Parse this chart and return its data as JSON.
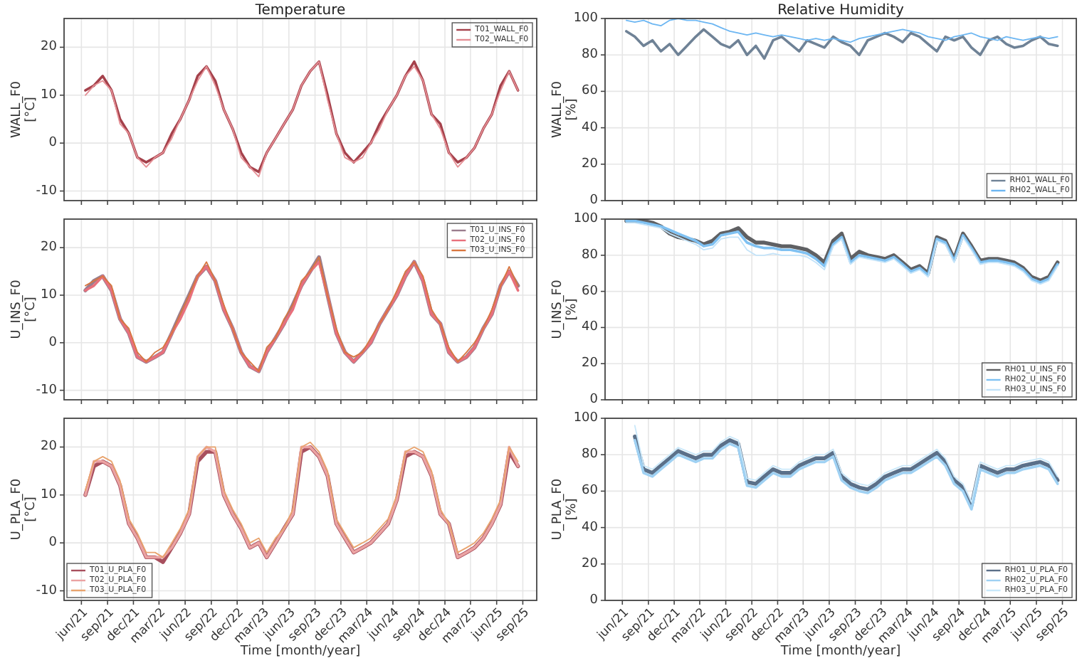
{
  "chart_data": [
    {
      "type": "line",
      "title": "Temperature",
      "ylabel": "WALL_F0\n[°C]",
      "xlim": [
        "2021-04-01",
        "2025-10-20"
      ],
      "ylim": [
        -12,
        26
      ],
      "yticks": [
        -10,
        0,
        10,
        20
      ],
      "xticks": [
        {
          "value": "2021-06-01",
          "label": null
        },
        {
          "value": "2021-09-01",
          "label": null
        },
        {
          "value": "2021-12-01",
          "label": null
        },
        {
          "value": "2022-03-01",
          "label": null
        },
        {
          "value": "2022-06-01",
          "label": null
        },
        {
          "value": "2022-09-01",
          "label": null
        },
        {
          "value": "2022-12-01",
          "label": null
        },
        {
          "value": "2023-03-01",
          "label": null
        },
        {
          "value": "2023-06-01",
          "label": null
        },
        {
          "value": "2023-09-01",
          "label": null
        },
        {
          "value": "2023-12-01",
          "label": null
        },
        {
          "value": "2024-03-01",
          "label": null
        },
        {
          "value": "2024-06-01",
          "label": null
        },
        {
          "value": "2024-09-01",
          "label": null
        },
        {
          "value": "2024-12-01",
          "label": null
        },
        {
          "value": "2025-03-01",
          "label": null
        },
        {
          "value": "2025-06-01",
          "label": null
        },
        {
          "value": "2025-09-01",
          "label": null
        }
      ],
      "tick_labels": "y",
      "grid": true,
      "legend": "top right",
      "x": [
        "2021-06-15",
        "2021-07-15",
        "2021-08-15",
        "2021-09-15",
        "2021-10-15",
        "2021-11-15",
        "2021-12-15",
        "2022-01-15",
        "2022-02-15",
        "2022-03-15",
        "2022-04-15",
        "2022-05-15",
        "2022-06-15",
        "2022-07-15",
        "2022-08-15",
        "2022-09-15",
        "2022-10-15",
        "2022-11-15",
        "2022-12-15",
        "2023-01-15",
        "2023-02-15",
        "2023-03-15",
        "2023-04-15",
        "2023-05-15",
        "2023-06-15",
        "2023-07-15",
        "2023-08-15",
        "2023-09-15",
        "2023-10-15",
        "2023-11-15",
        "2023-12-15",
        "2024-01-15",
        "2024-02-15",
        "2024-03-15",
        "2024-04-15",
        "2024-05-15",
        "2024-06-15",
        "2024-07-15",
        "2024-08-15",
        "2024-09-15",
        "2024-10-15",
        "2024-11-15",
        "2024-12-15",
        "2025-01-15",
        "2025-02-15",
        "2025-03-15",
        "2025-04-15",
        "2025-05-15",
        "2025-06-15",
        "2025-07-15",
        "2025-08-15"
      ],
      "series": [
        {
          "name": "T01_WALL_F0",
          "color": "#a5414b",
          "values": [
            11,
            12,
            14,
            11,
            5,
            2,
            -3,
            -4,
            -3,
            -2,
            2,
            5,
            9,
            14,
            16,
            13,
            7,
            3,
            -2,
            -5,
            -6,
            -2,
            1,
            4,
            7,
            12,
            15,
            17,
            10,
            2,
            -2,
            -4,
            -2,
            0,
            4,
            7,
            10,
            14,
            17,
            13,
            6,
            4,
            -2,
            -4,
            -3,
            -1,
            3,
            6,
            12,
            15,
            11
          ]
        },
        {
          "name": "T02_WALL_F0",
          "color": "#e58f95",
          "values": [
            10,
            12,
            13,
            11,
            4,
            2,
            -3,
            -5,
            -3,
            -2,
            1,
            5,
            9,
            13,
            16,
            12,
            7,
            3,
            -3,
            -5,
            -7,
            -2,
            1,
            4,
            7,
            12,
            15,
            17,
            9,
            2,
            -3,
            -4,
            -3,
            0,
            3,
            7,
            10,
            14,
            16,
            13,
            6,
            3,
            -2,
            -5,
            -3,
            -1,
            3,
            6,
            11,
            15,
            11
          ]
        }
      ]
    },
    {
      "type": "line",
      "title": "Relative Humidity",
      "ylabel": "WALL_F0\n[%]",
      "xlim": [
        "2021-04-01",
        "2025-10-20"
      ],
      "ylim": [
        0,
        100
      ],
      "yticks": [
        0,
        20,
        40,
        60,
        80,
        100
      ],
      "xticks": [
        {
          "value": "2021-06-01",
          "label": null
        },
        {
          "value": "2021-09-01",
          "label": null
        },
        {
          "value": "2021-12-01",
          "label": null
        },
        {
          "value": "2022-03-01",
          "label": null
        },
        {
          "value": "2022-06-01",
          "label": null
        },
        {
          "value": "2022-09-01",
          "label": null
        },
        {
          "value": "2022-12-01",
          "label": null
        },
        {
          "value": "2023-03-01",
          "label": null
        },
        {
          "value": "2023-06-01",
          "label": null
        },
        {
          "value": "2023-09-01",
          "label": null
        },
        {
          "value": "2023-12-01",
          "label": null
        },
        {
          "value": "2024-03-01",
          "label": null
        },
        {
          "value": "2024-06-01",
          "label": null
        },
        {
          "value": "2024-09-01",
          "label": null
        },
        {
          "value": "2024-12-01",
          "label": null
        },
        {
          "value": "2025-03-01",
          "label": null
        },
        {
          "value": "2025-06-01",
          "label": null
        },
        {
          "value": "2025-09-01",
          "label": null
        }
      ],
      "tick_labels": "y",
      "grid": true,
      "legend": "bottom right",
      "x": [
        "2021-06-15",
        "2021-07-15",
        "2021-08-15",
        "2021-09-15",
        "2021-10-15",
        "2021-11-15",
        "2021-12-15",
        "2022-01-15",
        "2022-02-15",
        "2022-03-15",
        "2022-04-15",
        "2022-05-15",
        "2022-06-15",
        "2022-07-15",
        "2022-08-15",
        "2022-09-15",
        "2022-10-15",
        "2022-11-15",
        "2022-12-15",
        "2023-01-15",
        "2023-02-15",
        "2023-03-15",
        "2023-04-15",
        "2023-05-15",
        "2023-06-15",
        "2023-07-15",
        "2023-08-15",
        "2023-09-15",
        "2023-10-15",
        "2023-11-15",
        "2023-12-15",
        "2024-01-15",
        "2024-02-15",
        "2024-03-15",
        "2024-04-15",
        "2024-05-15",
        "2024-06-15",
        "2024-07-15",
        "2024-08-15",
        "2024-09-15",
        "2024-10-15",
        "2024-11-15",
        "2024-12-15",
        "2025-01-15",
        "2025-02-15",
        "2025-03-15",
        "2025-04-15",
        "2025-05-15",
        "2025-06-15",
        "2025-07-15",
        "2025-08-15"
      ],
      "series": [
        {
          "name": "RH01_WALL_F0",
          "color": "#6f8296",
          "values": [
            93,
            90,
            85,
            88,
            82,
            86,
            80,
            85,
            90,
            94,
            90,
            86,
            84,
            88,
            80,
            85,
            78,
            88,
            90,
            86,
            82,
            88,
            86,
            84,
            90,
            87,
            85,
            80,
            88,
            90,
            92,
            90,
            87,
            92,
            90,
            86,
            82,
            90,
            88,
            90,
            84,
            80,
            88,
            90,
            86,
            84,
            85,
            88,
            90,
            86,
            85
          ]
        },
        {
          "name": "RH02_WALL_F0",
          "color": "#6cb6f2",
          "values": [
            99,
            98,
            99,
            97,
            96,
            99,
            100,
            99,
            99,
            98,
            97,
            95,
            93,
            92,
            91,
            92,
            91,
            90,
            91,
            90,
            89,
            88,
            89,
            88,
            89,
            88,
            87,
            89,
            90,
            91,
            92,
            93,
            94,
            93,
            92,
            90,
            89,
            88,
            90,
            91,
            92,
            90,
            89,
            88,
            90,
            89,
            88,
            89,
            90,
            89,
            90
          ]
        }
      ]
    },
    {
      "type": "line",
      "ylabel": "U_INS_F0\n[°C]",
      "xlim": [
        "2021-04-01",
        "2025-10-20"
      ],
      "ylim": [
        -12,
        26
      ],
      "yticks": [
        -10,
        0,
        10,
        20
      ],
      "xticks": [
        {
          "value": "2021-06-01",
          "label": null
        },
        {
          "value": "2021-09-01",
          "label": null
        },
        {
          "value": "2021-12-01",
          "label": null
        },
        {
          "value": "2022-03-01",
          "label": null
        },
        {
          "value": "2022-06-01",
          "label": null
        },
        {
          "value": "2022-09-01",
          "label": null
        },
        {
          "value": "2022-12-01",
          "label": null
        },
        {
          "value": "2023-03-01",
          "label": null
        },
        {
          "value": "2023-06-01",
          "label": null
        },
        {
          "value": "2023-09-01",
          "label": null
        },
        {
          "value": "2023-12-01",
          "label": null
        },
        {
          "value": "2024-03-01",
          "label": null
        },
        {
          "value": "2024-06-01",
          "label": null
        },
        {
          "value": "2024-09-01",
          "label": null
        },
        {
          "value": "2024-12-01",
          "label": null
        },
        {
          "value": "2025-03-01",
          "label": null
        },
        {
          "value": "2025-06-01",
          "label": null
        },
        {
          "value": "2025-09-01",
          "label": null
        }
      ],
      "tick_labels": "y",
      "grid": true,
      "legend": "top right",
      "x": [
        "2021-06-15",
        "2021-07-15",
        "2021-08-15",
        "2021-09-15",
        "2021-10-15",
        "2021-11-15",
        "2021-12-15",
        "2022-01-15",
        "2022-02-15",
        "2022-03-15",
        "2022-04-15",
        "2022-05-15",
        "2022-06-15",
        "2022-07-15",
        "2022-08-15",
        "2022-09-15",
        "2022-10-15",
        "2022-11-15",
        "2022-12-15",
        "2023-01-15",
        "2023-02-15",
        "2023-03-15",
        "2023-04-15",
        "2023-05-15",
        "2023-06-15",
        "2023-07-15",
        "2023-08-15",
        "2023-09-15",
        "2023-10-15",
        "2023-11-15",
        "2023-12-15",
        "2024-01-15",
        "2024-02-15",
        "2024-03-15",
        "2024-04-15",
        "2024-05-15",
        "2024-06-15",
        "2024-07-15",
        "2024-08-15",
        "2024-09-15",
        "2024-10-15",
        "2024-11-15",
        "2024-12-15",
        "2025-01-15",
        "2025-02-15",
        "2025-03-15",
        "2025-04-15",
        "2025-05-15",
        "2025-06-15",
        "2025-07-15",
        "2025-08-15"
      ],
      "series": [
        {
          "name": "T01_U_INS_F0",
          "color": "#9a7d8e",
          "values": [
            11,
            13,
            14,
            11,
            5,
            2,
            -3,
            -4,
            -3,
            -2,
            2,
            6,
            10,
            14,
            16,
            13,
            7,
            3,
            -2,
            -5,
            -6,
            -2,
            1,
            4,
            8,
            12,
            15,
            18,
            10,
            2,
            -2,
            -4,
            -2,
            0,
            4,
            7,
            10,
            14,
            17,
            13,
            6,
            4,
            -2,
            -4,
            -3,
            -1,
            3,
            6,
            12,
            15,
            12
          ]
        },
        {
          "name": "T02_U_INS_F0",
          "color": "#e8707c",
          "values": [
            11,
            12,
            14,
            11,
            5,
            2,
            -3,
            -4,
            -3,
            -2,
            2,
            5,
            9,
            14,
            16,
            13,
            7,
            3,
            -2,
            -5,
            -6,
            -2,
            1,
            4,
            7,
            12,
            15,
            17,
            10,
            2,
            -2,
            -4,
            -2,
            0,
            4,
            7,
            10,
            14,
            17,
            13,
            6,
            4,
            -2,
            -4,
            -3,
            -1,
            3,
            6,
            12,
            15,
            11
          ]
        },
        {
          "name": "T03_U_INS_F0",
          "color": "#d9763f",
          "values": [
            12,
            13,
            14,
            12,
            5,
            3,
            -2,
            -4,
            -2,
            -1,
            2,
            6,
            10,
            14,
            17,
            13,
            8,
            3,
            -2,
            -4,
            -6,
            -1,
            1,
            5,
            8,
            13,
            15,
            18,
            10,
            3,
            -2,
            -3,
            -2,
            1,
            4,
            7,
            11,
            15,
            17,
            14,
            7,
            4,
            -1,
            -4,
            -2,
            0,
            3,
            7,
            12,
            16,
            12
          ]
        }
      ]
    },
    {
      "type": "line",
      "ylabel": "U_INS_F0\n[%]",
      "xlim": [
        "2021-04-01",
        "2025-10-20"
      ],
      "ylim": [
        0,
        100
      ],
      "yticks": [
        0,
        20,
        40,
        60,
        80,
        100
      ],
      "xticks": [
        {
          "value": "2021-06-01",
          "label": null
        },
        {
          "value": "2021-09-01",
          "label": null
        },
        {
          "value": "2021-12-01",
          "label": null
        },
        {
          "value": "2022-03-01",
          "label": null
        },
        {
          "value": "2022-06-01",
          "label": null
        },
        {
          "value": "2022-09-01",
          "label": null
        },
        {
          "value": "2022-12-01",
          "label": null
        },
        {
          "value": "2023-03-01",
          "label": null
        },
        {
          "value": "2023-06-01",
          "label": null
        },
        {
          "value": "2023-09-01",
          "label": null
        },
        {
          "value": "2023-12-01",
          "label": null
        },
        {
          "value": "2024-03-01",
          "label": null
        },
        {
          "value": "2024-06-01",
          "label": null
        },
        {
          "value": "2024-09-01",
          "label": null
        },
        {
          "value": "2024-12-01",
          "label": null
        },
        {
          "value": "2025-03-01",
          "label": null
        },
        {
          "value": "2025-06-01",
          "label": null
        },
        {
          "value": "2025-09-01",
          "label": null
        }
      ],
      "tick_labels": "y",
      "grid": true,
      "legend": "bottom right",
      "x": [
        "2021-06-15",
        "2021-07-15",
        "2021-08-15",
        "2021-09-15",
        "2021-10-15",
        "2021-11-15",
        "2021-12-15",
        "2022-01-15",
        "2022-02-15",
        "2022-03-15",
        "2022-04-15",
        "2022-05-15",
        "2022-06-15",
        "2022-07-15",
        "2022-08-15",
        "2022-09-15",
        "2022-10-15",
        "2022-11-15",
        "2022-12-15",
        "2023-01-15",
        "2023-02-15",
        "2023-03-15",
        "2023-04-15",
        "2023-05-15",
        "2023-06-15",
        "2023-07-15",
        "2023-08-15",
        "2023-09-15",
        "2023-10-15",
        "2023-11-15",
        "2023-12-15",
        "2024-01-15",
        "2024-02-15",
        "2024-03-15",
        "2024-04-15",
        "2024-05-15",
        "2024-06-15",
        "2024-07-15",
        "2024-08-15",
        "2024-09-15",
        "2024-10-15",
        "2024-11-15",
        "2024-12-15",
        "2025-01-15",
        "2025-02-15",
        "2025-03-15",
        "2025-04-15",
        "2025-05-15",
        "2025-06-15",
        "2025-07-15",
        "2025-08-15"
      ],
      "series": [
        {
          "name": "RH01_U_INS_F0",
          "color": "#5f6063",
          "values": [
            99,
            99,
            99,
            98,
            96,
            92,
            90,
            89,
            88,
            86,
            88,
            92,
            93,
            95,
            90,
            87,
            87,
            86,
            85,
            85,
            84,
            83,
            80,
            76,
            88,
            92,
            78,
            82,
            80,
            79,
            78,
            80,
            76,
            72,
            74,
            70,
            90,
            88,
            78,
            92,
            85,
            77,
            78,
            78,
            77,
            76,
            73,
            68,
            66,
            68,
            76
          ]
        },
        {
          "name": "RH02_U_INS_F0",
          "color": "#7fc1f2",
          "values": [
            99,
            99,
            98,
            97,
            96,
            94,
            92,
            90,
            88,
            85,
            86,
            91,
            92,
            93,
            87,
            85,
            84,
            84,
            83,
            83,
            82,
            81,
            78,
            74,
            86,
            90,
            76,
            80,
            79,
            78,
            77,
            79,
            75,
            71,
            73,
            69,
            89,
            87,
            77,
            91,
            84,
            76,
            77,
            77,
            76,
            75,
            72,
            67,
            65,
            67,
            75
          ]
        },
        {
          "name": "RH03_U_INS_F0",
          "color": "#c3e3f9",
          "values": [
            98,
            98,
            97,
            96,
            95,
            92,
            90,
            88,
            86,
            83,
            84,
            89,
            90,
            90,
            83,
            80,
            80,
            81,
            80,
            80,
            80,
            79,
            76,
            72,
            85,
            89,
            75,
            79,
            78,
            77,
            76,
            78,
            74,
            70,
            72,
            68,
            88,
            86,
            76,
            90,
            83,
            75,
            76,
            76,
            75,
            74,
            71,
            66,
            64,
            66,
            74
          ]
        }
      ]
    },
    {
      "type": "line",
      "ylabel": "U_PLA_F0\n[°C]",
      "xlabel": "Time [month/year]",
      "xlim": [
        "2021-04-01",
        "2025-10-20"
      ],
      "ylim": [
        -12,
        26
      ],
      "yticks": [
        -10,
        0,
        10,
        20
      ],
      "xticks": [
        {
          "value": "2021-06-01",
          "label": "jun/21"
        },
        {
          "value": "2021-09-01",
          "label": "sep/21"
        },
        {
          "value": "2021-12-01",
          "label": "dec/21"
        },
        {
          "value": "2022-03-01",
          "label": "mar/22"
        },
        {
          "value": "2022-06-01",
          "label": "jun/22"
        },
        {
          "value": "2022-09-01",
          "label": "sep/22"
        },
        {
          "value": "2022-12-01",
          "label": "dec/22"
        },
        {
          "value": "2023-03-01",
          "label": "mar/23"
        },
        {
          "value": "2023-06-01",
          "label": "jun/23"
        },
        {
          "value": "2023-09-01",
          "label": "sep/23"
        },
        {
          "value": "2023-12-01",
          "label": "dec/23"
        },
        {
          "value": "2024-03-01",
          "label": "mar/24"
        },
        {
          "value": "2024-06-01",
          "label": "jun/24"
        },
        {
          "value": "2024-09-01",
          "label": "sep/24"
        },
        {
          "value": "2024-12-01",
          "label": "dec/24"
        },
        {
          "value": "2025-03-01",
          "label": "mar/25"
        },
        {
          "value": "2025-06-01",
          "label": "jun/25"
        },
        {
          "value": "2025-09-01",
          "label": "sep/25"
        }
      ],
      "grid": true,
      "legend": "bottom left",
      "x": [
        "2021-06-15",
        "2021-07-15",
        "2021-08-15",
        "2021-09-15",
        "2021-10-15",
        "2021-11-15",
        "2021-12-15",
        "2022-01-15",
        "2022-02-15",
        "2022-03-15",
        "2022-04-15",
        "2022-05-15",
        "2022-06-15",
        "2022-07-15",
        "2022-08-15",
        "2022-09-15",
        "2022-10-15",
        "2022-11-15",
        "2022-12-15",
        "2023-01-15",
        "2023-02-15",
        "2023-03-15",
        "2023-04-15",
        "2023-05-15",
        "2023-06-15",
        "2023-07-15",
        "2023-08-15",
        "2023-09-15",
        "2023-10-15",
        "2023-11-15",
        "2023-12-15",
        "2024-01-15",
        "2024-02-15",
        "2024-03-15",
        "2024-04-15",
        "2024-05-15",
        "2024-06-15",
        "2024-07-15",
        "2024-08-15",
        "2024-09-15",
        "2024-10-15",
        "2024-11-15",
        "2024-12-15",
        "2025-01-15",
        "2025-02-15",
        "2025-03-15",
        "2025-04-15",
        "2025-05-15",
        "2025-06-15",
        "2025-07-15",
        "2025-08-15"
      ],
      "series": [
        {
          "name": "T01_U_PLA_F0",
          "color": "#a8505e",
          "values": [
            10,
            16,
            17,
            16,
            12,
            4,
            1,
            -3,
            -3,
            -4,
            -1,
            2,
            6,
            17,
            19,
            19,
            10,
            6,
            3,
            -1,
            0,
            -3,
            0,
            3,
            6,
            19,
            20,
            18,
            14,
            4,
            1,
            -2,
            -1,
            0,
            2,
            4,
            9,
            18,
            19,
            18,
            14,
            6,
            4,
            -3,
            -2,
            -1,
            1,
            4,
            8,
            19,
            16
          ]
        },
        {
          "name": "T02_U_PLA_F0",
          "color": "#eba3a3",
          "values": [
            10,
            17,
            17,
            16,
            12,
            4,
            1,
            -3,
            -3,
            -3,
            -1,
            2,
            6,
            18,
            20,
            19,
            10,
            6,
            3,
            -1,
            0,
            -3,
            0,
            3,
            6,
            20,
            20,
            18,
            14,
            4,
            1,
            -2,
            -1,
            0,
            2,
            4,
            9,
            19,
            19,
            18,
            14,
            6,
            4,
            -3,
            -2,
            -1,
            1,
            4,
            8,
            20,
            16
          ]
        },
        {
          "name": "T03_U_PLA_F0",
          "color": "#e9a46e",
          "values": [
            11,
            17,
            18,
            17,
            13,
            5,
            2,
            -2,
            -2,
            -3,
            0,
            3,
            7,
            18,
            20,
            20,
            11,
            7,
            4,
            0,
            1,
            -2,
            1,
            3,
            7,
            20,
            21,
            19,
            15,
            5,
            2,
            -1,
            0,
            1,
            3,
            5,
            10,
            19,
            20,
            19,
            15,
            7,
            4,
            -2,
            -1,
            0,
            2,
            5,
            9,
            20,
            17
          ]
        }
      ]
    },
    {
      "type": "line",
      "ylabel": "U_PLA_F0\n[%]",
      "xlabel": "Time [month/year]",
      "xlim": [
        "2021-04-01",
        "2025-10-20"
      ],
      "ylim": [
        0,
        100
      ],
      "yticks": [
        0,
        20,
        40,
        60,
        80,
        100
      ],
      "xticks": [
        {
          "value": "2021-06-01",
          "label": "jun/21"
        },
        {
          "value": "2021-09-01",
          "label": "sep/21"
        },
        {
          "value": "2021-12-01",
          "label": "dec/21"
        },
        {
          "value": "2022-03-01",
          "label": "mar/22"
        },
        {
          "value": "2022-06-01",
          "label": "jun/22"
        },
        {
          "value": "2022-09-01",
          "label": "sep/22"
        },
        {
          "value": "2022-12-01",
          "label": "dec/22"
        },
        {
          "value": "2023-03-01",
          "label": "mar/23"
        },
        {
          "value": "2023-06-01",
          "label": "jun/23"
        },
        {
          "value": "2023-09-01",
          "label": "sep/23"
        },
        {
          "value": "2023-12-01",
          "label": "dec/23"
        },
        {
          "value": "2024-03-01",
          "label": "mar/24"
        },
        {
          "value": "2024-06-01",
          "label": "jun/24"
        },
        {
          "value": "2024-09-01",
          "label": "sep/24"
        },
        {
          "value": "2024-12-01",
          "label": "dec/24"
        },
        {
          "value": "2025-03-01",
          "label": "mar/25"
        },
        {
          "value": "2025-06-01",
          "label": "jun/25"
        },
        {
          "value": "2025-09-01",
          "label": "sep/25"
        }
      ],
      "grid": true,
      "legend": "bottom right",
      "x": [
        "2021-07-15",
        "2021-08-15",
        "2021-09-15",
        "2021-10-15",
        "2021-11-15",
        "2021-12-15",
        "2022-01-15",
        "2022-02-15",
        "2022-03-15",
        "2022-04-15",
        "2022-05-15",
        "2022-06-15",
        "2022-07-15",
        "2022-08-15",
        "2022-09-15",
        "2022-10-15",
        "2022-11-15",
        "2022-12-15",
        "2023-01-15",
        "2023-02-15",
        "2023-03-15",
        "2023-04-15",
        "2023-05-15",
        "2023-06-15",
        "2023-07-15",
        "2023-08-15",
        "2023-09-15",
        "2023-10-15",
        "2023-11-15",
        "2023-12-15",
        "2024-01-15",
        "2024-02-15",
        "2024-03-15",
        "2024-04-15",
        "2024-05-15",
        "2024-06-15",
        "2024-07-15",
        "2024-08-15",
        "2024-09-15",
        "2024-10-15",
        "2024-11-15",
        "2024-12-15",
        "2025-01-15",
        "2025-02-15",
        "2025-03-15",
        "2025-04-15",
        "2025-05-15",
        "2025-06-15",
        "2025-07-15",
        "2025-08-15"
      ],
      "series": [
        {
          "name": "RH01_U_PLA_F0",
          "color": "#5b7089",
          "values": [
            90,
            72,
            70,
            74,
            78,
            82,
            80,
            78,
            80,
            80,
            85,
            88,
            86,
            65,
            64,
            68,
            72,
            70,
            70,
            74,
            76,
            78,
            78,
            81,
            68,
            64,
            62,
            61,
            64,
            68,
            70,
            72,
            72,
            75,
            78,
            81,
            76,
            66,
            62,
            52,
            74,
            72,
            70,
            72,
            72,
            74,
            75,
            76,
            74,
            66
          ]
        },
        {
          "name": "RH02_U_PLA_F0",
          "color": "#9fd1f3",
          "values": [
            88,
            70,
            68,
            72,
            76,
            80,
            78,
            76,
            78,
            78,
            83,
            86,
            84,
            63,
            62,
            66,
            70,
            68,
            68,
            72,
            74,
            76,
            76,
            79,
            66,
            62,
            60,
            59,
            62,
            66,
            68,
            70,
            70,
            73,
            76,
            79,
            74,
            64,
            60,
            50,
            72,
            70,
            68,
            70,
            70,
            72,
            73,
            74,
            72,
            64
          ]
        },
        {
          "name": "RH03_U_PLA_F0",
          "color": "#c9e8fa",
          "values": [
            96,
            74,
            72,
            76,
            80,
            84,
            82,
            80,
            82,
            82,
            87,
            90,
            88,
            67,
            66,
            70,
            74,
            72,
            72,
            76,
            78,
            80,
            80,
            83,
            70,
            66,
            64,
            63,
            66,
            70,
            72,
            74,
            74,
            77,
            80,
            83,
            78,
            68,
            64,
            54,
            76,
            74,
            72,
            74,
            74,
            76,
            77,
            78,
            76,
            68
          ]
        }
      ]
    }
  ]
}
